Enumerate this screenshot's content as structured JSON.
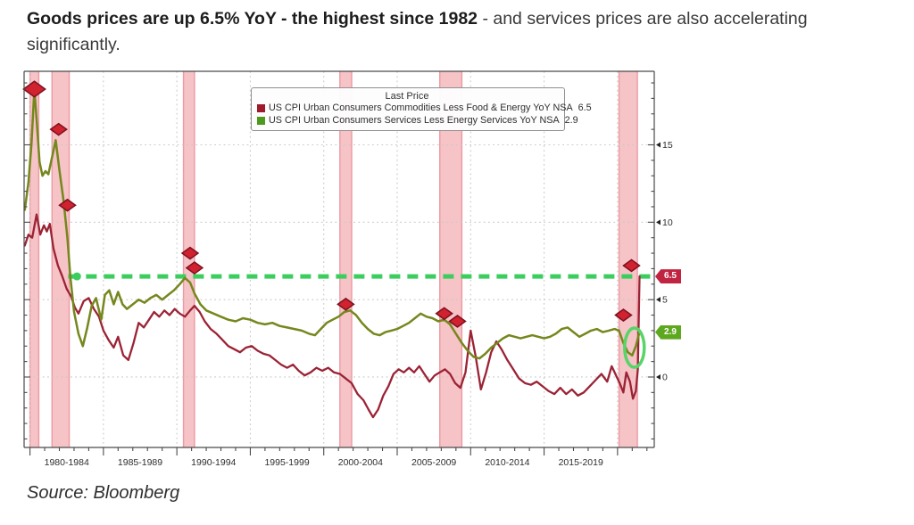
{
  "header": {
    "bold": "Goods prices are up 6.5% YoY - the highest since 1982",
    "regular": " - and services prices are also accelerating significantly."
  },
  "source": "Source: Bloomberg",
  "chart_data": {
    "type": "line",
    "title": "Last Price",
    "xlim": [
      1979.6,
      2022.5
    ],
    "ylim": [
      -4.55,
      19.75
    ],
    "grid": true,
    "legend_position": "top-center",
    "legend": {
      "title": "Last Price",
      "entries": [
        {
          "label": "US CPI Urban Consumers Commodities Less Food & Energy YoY NSA",
          "value": "6.5",
          "swatch": "#9e1b2b"
        },
        {
          "label": "US CPI Urban Consumers Services Less Energy Services YoY NSA",
          "value": "2.9",
          "swatch": "#4e9a1e"
        }
      ]
    },
    "ylabels": [
      {
        "v": 0,
        "t": "0"
      },
      {
        "v": 5,
        "t": "5"
      },
      {
        "v": 10,
        "t": "10"
      },
      {
        "v": 15,
        "t": "15"
      }
    ],
    "xgrid_years": [
      1980,
      1985,
      1990,
      1995,
      2000,
      2005,
      2010,
      2015,
      2020
    ],
    "xsections": [
      {
        "t": "1980-1984",
        "c": 1982.5
      },
      {
        "t": "1985-1989",
        "c": 1987.5
      },
      {
        "t": "1990-1994",
        "c": 1992.5
      },
      {
        "t": "1995-1999",
        "c": 1997.5
      },
      {
        "t": "2000-2004",
        "c": 2002.5
      },
      {
        "t": "2005-2009",
        "c": 2007.5
      },
      {
        "t": "2010-2014",
        "c": 2012.5
      },
      {
        "t": "2015-2019",
        "c": 2017.5
      }
    ],
    "recession_bands": [
      [
        1980.0,
        1980.6
      ],
      [
        1981.5,
        1982.67
      ],
      [
        1990.45,
        1991.2
      ],
      [
        2001.1,
        2001.9
      ],
      [
        2007.9,
        2009.4
      ],
      [
        2020.1,
        2021.35
      ]
    ],
    "target_line": {
      "value": 6.5,
      "start_year": 1982.6,
      "color": "#3bcd5e"
    },
    "target_dot": {
      "year": 1983.2,
      "value": 6.5
    },
    "annotation_ellipse": {
      "year": 2021.15,
      "value": 1.9
    },
    "badges": [
      {
        "text": "6.5",
        "value": 6.5,
        "bg": "#c12441"
      },
      {
        "text": "2.9",
        "value": 2.9,
        "bg": "#5ea81f"
      }
    ],
    "markers": [
      {
        "year": 1980.3,
        "value": 18.6,
        "s": 1.35
      },
      {
        "year": 1981.95,
        "value": 16.0,
        "s": 1
      },
      {
        "year": 1982.55,
        "value": 11.1,
        "s": 1
      },
      {
        "year": 1990.9,
        "value": 8.0,
        "s": 1
      },
      {
        "year": 1991.2,
        "value": 7.05,
        "s": 1
      },
      {
        "year": 2001.5,
        "value": 4.7,
        "s": 1
      },
      {
        "year": 2008.2,
        "value": 4.1,
        "s": 1
      },
      {
        "year": 2009.1,
        "value": 3.6,
        "s": 1
      },
      {
        "year": 2020.4,
        "value": 4.0,
        "s": 1
      },
      {
        "year": 2020.95,
        "value": 7.2,
        "s": 1
      }
    ],
    "series": [
      {
        "name": "US CPI Urban Consumers Commodities Less Food & Energy YoY NSA",
        "last": 6.5,
        "color": "#9b2335",
        "points": [
          [
            1979.65,
            8.5
          ],
          [
            1979.9,
            9.2
          ],
          [
            1980.15,
            9.0
          ],
          [
            1980.45,
            10.5
          ],
          [
            1980.7,
            9.2
          ],
          [
            1980.95,
            9.8
          ],
          [
            1981.15,
            9.4
          ],
          [
            1981.35,
            9.9
          ],
          [
            1981.6,
            8.3
          ],
          [
            1981.9,
            7.2
          ],
          [
            1982.2,
            6.5
          ],
          [
            1982.5,
            5.7
          ],
          [
            1982.8,
            5.2
          ],
          [
            1983.05,
            4.5
          ],
          [
            1983.3,
            4.1
          ],
          [
            1983.65,
            4.9
          ],
          [
            1984.0,
            5.1
          ],
          [
            1984.35,
            4.4
          ],
          [
            1984.7,
            3.9
          ],
          [
            1985.0,
            3.0
          ],
          [
            1985.35,
            2.4
          ],
          [
            1985.7,
            1.9
          ],
          [
            1986.0,
            2.6
          ],
          [
            1986.35,
            1.4
          ],
          [
            1986.7,
            1.1
          ],
          [
            1987.05,
            2.2
          ],
          [
            1987.4,
            3.5
          ],
          [
            1987.75,
            3.2
          ],
          [
            1988.1,
            3.7
          ],
          [
            1988.45,
            4.2
          ],
          [
            1988.8,
            3.9
          ],
          [
            1989.15,
            4.3
          ],
          [
            1989.5,
            4.0
          ],
          [
            1989.85,
            4.4
          ],
          [
            1990.2,
            4.1
          ],
          [
            1990.55,
            3.9
          ],
          [
            1990.9,
            4.3
          ],
          [
            1991.2,
            4.6
          ],
          [
            1991.55,
            4.2
          ],
          [
            1991.9,
            3.6
          ],
          [
            1992.3,
            3.1
          ],
          [
            1992.7,
            2.8
          ],
          [
            1993.1,
            2.4
          ],
          [
            1993.5,
            2.0
          ],
          [
            1993.9,
            1.8
          ],
          [
            1994.3,
            1.6
          ],
          [
            1994.7,
            1.9
          ],
          [
            1995.1,
            2.0
          ],
          [
            1995.5,
            1.7
          ],
          [
            1995.9,
            1.5
          ],
          [
            1996.3,
            1.4
          ],
          [
            1996.7,
            1.1
          ],
          [
            1997.1,
            0.8
          ],
          [
            1997.5,
            0.6
          ],
          [
            1997.9,
            0.8
          ],
          [
            1998.3,
            0.4
          ],
          [
            1998.7,
            0.1
          ],
          [
            1999.1,
            0.3
          ],
          [
            1999.5,
            0.6
          ],
          [
            1999.9,
            0.4
          ],
          [
            2000.3,
            0.6
          ],
          [
            2000.7,
            0.3
          ],
          [
            2001.1,
            0.2
          ],
          [
            2001.5,
            -0.1
          ],
          [
            2001.9,
            -0.4
          ],
          [
            2002.3,
            -1.1
          ],
          [
            2002.7,
            -1.5
          ],
          [
            2003.05,
            -2.1
          ],
          [
            2003.35,
            -2.6
          ],
          [
            2003.7,
            -2.1
          ],
          [
            2004.05,
            -1.2
          ],
          [
            2004.4,
            -0.6
          ],
          [
            2004.75,
            0.2
          ],
          [
            2005.1,
            0.5
          ],
          [
            2005.45,
            0.3
          ],
          [
            2005.8,
            0.6
          ],
          [
            2006.15,
            0.3
          ],
          [
            2006.5,
            0.7
          ],
          [
            2006.85,
            0.2
          ],
          [
            2007.2,
            -0.3
          ],
          [
            2007.55,
            0.1
          ],
          [
            2007.9,
            0.3
          ],
          [
            2008.25,
            0.5
          ],
          [
            2008.6,
            0.2
          ],
          [
            2008.95,
            -0.4
          ],
          [
            2009.3,
            -0.7
          ],
          [
            2009.65,
            0.3
          ],
          [
            2010.0,
            3.0
          ],
          [
            2010.35,
            1.3
          ],
          [
            2010.7,
            -0.8
          ],
          [
            2011.05,
            0.3
          ],
          [
            2011.4,
            1.6
          ],
          [
            2011.75,
            2.3
          ],
          [
            2012.1,
            1.8
          ],
          [
            2012.5,
            1.1
          ],
          [
            2012.9,
            0.5
          ],
          [
            2013.3,
            -0.1
          ],
          [
            2013.7,
            -0.4
          ],
          [
            2014.1,
            -0.5
          ],
          [
            2014.5,
            -0.3
          ],
          [
            2014.9,
            -0.6
          ],
          [
            2015.3,
            -0.9
          ],
          [
            2015.7,
            -1.1
          ],
          [
            2016.1,
            -0.7
          ],
          [
            2016.5,
            -1.1
          ],
          [
            2016.9,
            -0.8
          ],
          [
            2017.3,
            -1.2
          ],
          [
            2017.7,
            -1.0
          ],
          [
            2018.1,
            -0.6
          ],
          [
            2018.5,
            -0.2
          ],
          [
            2018.9,
            0.2
          ],
          [
            2019.3,
            -0.3
          ],
          [
            2019.6,
            0.7
          ],
          [
            2019.9,
            0.1
          ],
          [
            2020.15,
            -0.4
          ],
          [
            2020.4,
            -1.0
          ],
          [
            2020.6,
            0.3
          ],
          [
            2020.85,
            -0.3
          ],
          [
            2021.05,
            -1.4
          ],
          [
            2021.25,
            -0.9
          ],
          [
            2021.38,
            0.5
          ],
          [
            2021.5,
            6.5
          ]
        ]
      },
      {
        "name": "US CPI Urban Consumers Services Less Energy Services YoY NSA",
        "last": 2.9,
        "color": "#75871d",
        "points": [
          [
            1979.65,
            10.8
          ],
          [
            1979.9,
            12.6
          ],
          [
            1980.1,
            15.0
          ],
          [
            1980.3,
            18.6
          ],
          [
            1980.5,
            16.0
          ],
          [
            1980.65,
            13.9
          ],
          [
            1980.85,
            13.0
          ],
          [
            1981.05,
            13.3
          ],
          [
            1981.25,
            13.1
          ],
          [
            1981.5,
            14.2
          ],
          [
            1981.75,
            15.3
          ],
          [
            1982.0,
            13.4
          ],
          [
            1982.3,
            11.3
          ],
          [
            1982.55,
            9.0
          ],
          [
            1982.75,
            6.5
          ],
          [
            1983.0,
            4.2
          ],
          [
            1983.3,
            2.8
          ],
          [
            1983.6,
            2.0
          ],
          [
            1983.9,
            3.2
          ],
          [
            1984.2,
            4.6
          ],
          [
            1984.5,
            5.1
          ],
          [
            1984.85,
            3.7
          ],
          [
            1985.1,
            5.3
          ],
          [
            1985.4,
            5.6
          ],
          [
            1985.7,
            4.7
          ],
          [
            1986.0,
            5.5
          ],
          [
            1986.3,
            4.7
          ],
          [
            1986.6,
            4.4
          ],
          [
            1987.0,
            4.7
          ],
          [
            1987.4,
            5.0
          ],
          [
            1987.8,
            4.8
          ],
          [
            1988.2,
            5.1
          ],
          [
            1988.6,
            5.3
          ],
          [
            1989.0,
            5.0
          ],
          [
            1989.4,
            5.3
          ],
          [
            1989.8,
            5.6
          ],
          [
            1990.2,
            6.0
          ],
          [
            1990.55,
            6.4
          ],
          [
            1990.9,
            6.1
          ],
          [
            1991.2,
            5.4
          ],
          [
            1991.6,
            4.7
          ],
          [
            1992.0,
            4.3
          ],
          [
            1992.5,
            4.1
          ],
          [
            1993.0,
            3.9
          ],
          [
            1993.5,
            3.7
          ],
          [
            1994.0,
            3.6
          ],
          [
            1994.5,
            3.8
          ],
          [
            1995.0,
            3.7
          ],
          [
            1995.5,
            3.5
          ],
          [
            1996.0,
            3.4
          ],
          [
            1996.5,
            3.5
          ],
          [
            1997.0,
            3.3
          ],
          [
            1997.5,
            3.2
          ],
          [
            1998.0,
            3.1
          ],
          [
            1998.5,
            3.0
          ],
          [
            1999.0,
            2.8
          ],
          [
            1999.4,
            2.7
          ],
          [
            1999.8,
            3.1
          ],
          [
            2000.2,
            3.5
          ],
          [
            2000.6,
            3.7
          ],
          [
            2001.0,
            3.9
          ],
          [
            2001.4,
            4.2
          ],
          [
            2001.8,
            4.3
          ],
          [
            2002.2,
            4.0
          ],
          [
            2002.6,
            3.5
          ],
          [
            2003.0,
            3.1
          ],
          [
            2003.4,
            2.8
          ],
          [
            2003.8,
            2.7
          ],
          [
            2004.2,
            2.9
          ],
          [
            2004.6,
            3.0
          ],
          [
            2005.0,
            3.1
          ],
          [
            2005.4,
            3.3
          ],
          [
            2005.8,
            3.5
          ],
          [
            2006.2,
            3.8
          ],
          [
            2006.6,
            4.1
          ],
          [
            2007.0,
            3.9
          ],
          [
            2007.4,
            3.8
          ],
          [
            2007.8,
            3.6
          ],
          [
            2008.2,
            3.7
          ],
          [
            2008.6,
            3.4
          ],
          [
            2009.0,
            2.8
          ],
          [
            2009.4,
            2.2
          ],
          [
            2009.8,
            1.7
          ],
          [
            2010.2,
            1.3
          ],
          [
            2010.6,
            1.2
          ],
          [
            2011.0,
            1.5
          ],
          [
            2011.4,
            1.9
          ],
          [
            2011.8,
            2.2
          ],
          [
            2012.2,
            2.5
          ],
          [
            2012.6,
            2.7
          ],
          [
            2013.0,
            2.6
          ],
          [
            2013.4,
            2.5
          ],
          [
            2013.8,
            2.6
          ],
          [
            2014.2,
            2.7
          ],
          [
            2014.6,
            2.6
          ],
          [
            2015.0,
            2.5
          ],
          [
            2015.4,
            2.6
          ],
          [
            2015.8,
            2.8
          ],
          [
            2016.2,
            3.1
          ],
          [
            2016.6,
            3.2
          ],
          [
            2017.0,
            2.9
          ],
          [
            2017.4,
            2.6
          ],
          [
            2017.8,
            2.8
          ],
          [
            2018.2,
            3.0
          ],
          [
            2018.6,
            3.1
          ],
          [
            2019.0,
            2.9
          ],
          [
            2019.4,
            3.0
          ],
          [
            2019.8,
            3.1
          ],
          [
            2020.1,
            3.0
          ],
          [
            2020.4,
            2.2
          ],
          [
            2020.7,
            1.6
          ],
          [
            2021.0,
            1.4
          ],
          [
            2021.25,
            2.0
          ],
          [
            2021.5,
            2.9
          ]
        ]
      }
    ],
    "colors": {
      "band": "#f6c3c7",
      "band_edge": "#ec9aa2",
      "grid": "#c9c9c9",
      "frame": "#4a4a4a",
      "marker_fill": "#d0222f",
      "marker_stroke": "#7d1120",
      "ellipse": "#58d468",
      "tick_label": "#2e2e2e"
    }
  }
}
